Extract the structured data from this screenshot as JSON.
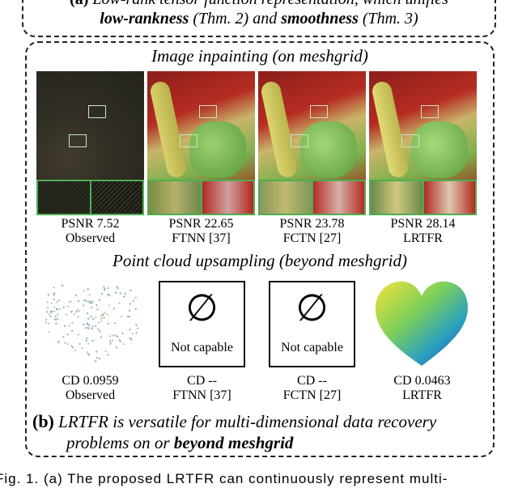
{
  "part_a": {
    "line1_prefix": "(a)",
    "line1_text": "Low-rank tensor function representation, which unifies",
    "line2_bold1": "low-rankness",
    "line2_mid1": " (Thm. 2) and ",
    "line2_bold2": "smoothness",
    "line2_mid2": " (Thm. 3)"
  },
  "inpainting": {
    "title": "Image inpainting (on meshgrid)",
    "panels": [
      {
        "metric": "PSNR 7.52",
        "method": "Observed"
      },
      {
        "metric": "PSNR 22.65",
        "method": "FTNN [37]"
      },
      {
        "metric": "PSNR 23.78",
        "method": "FCTN [27]"
      },
      {
        "metric": "PSNR 28.14",
        "method": "LRTFR"
      }
    ]
  },
  "pointcloud": {
    "title": "Point cloud upsampling (beyond meshgrid)",
    "empty_symbol": "∅",
    "not_capable": "Not capable",
    "panels": [
      {
        "metric": "CD 0.0959",
        "method": "Observed"
      },
      {
        "metric": "CD --",
        "method": "FTNN [37]"
      },
      {
        "metric": "CD --",
        "method": "FCTN [27]"
      },
      {
        "metric": "CD 0.0463",
        "method": "LRTFR"
      }
    ]
  },
  "part_b": {
    "prefix": "(b)",
    "line1": "LRTFR is versatile for multi-dimensional data recovery",
    "line2_text": "problems on or ",
    "line2_bold": "beyond meshgrid"
  },
  "caption": {
    "text": "Fig. 1. (a) The proposed LRTFR can continuously represent multi-"
  },
  "colors": {
    "frame": "#222222",
    "zoom_border": "#4caf50"
  }
}
